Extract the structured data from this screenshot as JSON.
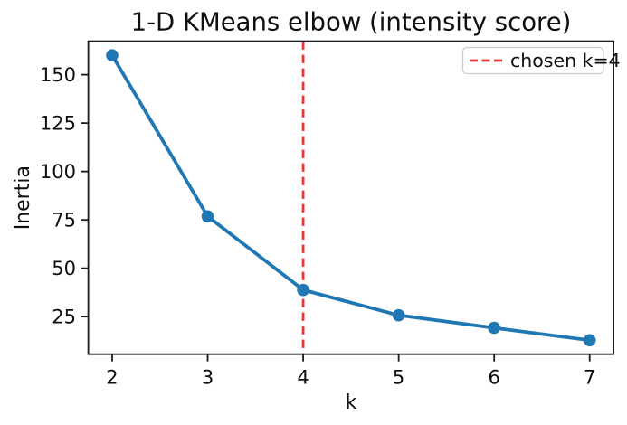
{
  "figure": {
    "background": "#ffffff",
    "text_color": "#0f0f0f",
    "spine_color": "#1a1a1a"
  },
  "chart_data": {
    "type": "line",
    "title": "1-D KMeans elbow (intensity score)",
    "xlabel": "k",
    "ylabel": "Inertia",
    "x": [
      2,
      3,
      4,
      5,
      6,
      7
    ],
    "series": [
      {
        "name": "Inertia",
        "color": "#1f77b4",
        "marker": "o",
        "values": [
          160.0,
          76.8,
          38.8,
          25.7,
          19.2,
          12.8
        ]
      }
    ],
    "xtick_values": [
      2,
      3,
      4,
      5,
      6,
      7
    ],
    "xtick_labels": [
      "2",
      "3",
      "4",
      "5",
      "6",
      "7"
    ],
    "ytick_values": [
      25,
      50,
      75,
      100,
      125,
      150
    ],
    "ytick_labels": [
      "25",
      "50",
      "75",
      "100",
      "125",
      "150"
    ],
    "xlim": [
      1.75,
      7.25
    ],
    "ylim": [
      5.6,
      167.3
    ],
    "grid": false,
    "legend": {
      "position": "upper right",
      "entries": [
        {
          "label": "chosen k=4",
          "color": "#e03a3a",
          "style": "dashed"
        }
      ]
    },
    "vline": {
      "x": 4,
      "color": "#e03a3a",
      "style": "dashed"
    }
  }
}
